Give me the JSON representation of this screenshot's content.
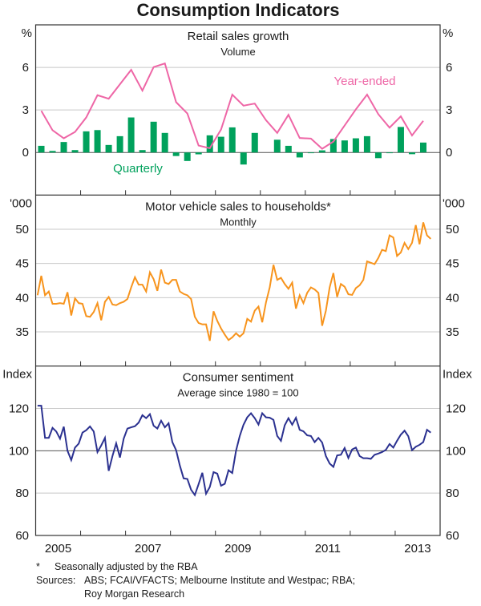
{
  "title": "Consumption Indicators",
  "footnotes": {
    "star": "*",
    "star_text": "Seasonally adjusted by the RBA",
    "sources_label": "Sources:",
    "sources_line1": "ABS; FCAI/VFACTS; Melbourne Institute and Westpac; RBA;",
    "sources_line2": "Roy Morgan Research"
  },
  "colors": {
    "year_ended": "#EE66A6",
    "quarterly": "#00A15C",
    "motor_vehicle": "#F7941D",
    "sentiment": "#2B3190",
    "grid": "#C8C8C8",
    "zero_line": "#555555"
  },
  "x_axis": {
    "range": [
      "2005-01",
      "2014-01"
    ],
    "tick_labels": [
      "2005",
      "2007",
      "2009",
      "2011",
      "2013"
    ],
    "label_years": [
      2005,
      2007,
      2009,
      2011,
      2013
    ]
  },
  "chart_data": [
    {
      "type": "bar+line",
      "title": "Retail sales growth",
      "subtitle": "Volume",
      "unit_left": "%",
      "unit_right": "%",
      "ylim": [
        -3,
        9
      ],
      "yticks": [
        0,
        3,
        6
      ],
      "grid": true,
      "x": [
        "2005-Q1",
        "2005-Q2",
        "2005-Q3",
        "2005-Q4",
        "2006-Q1",
        "2006-Q2",
        "2006-Q3",
        "2006-Q4",
        "2007-Q1",
        "2007-Q2",
        "2007-Q3",
        "2007-Q4",
        "2008-Q1",
        "2008-Q2",
        "2008-Q3",
        "2008-Q4",
        "2009-Q1",
        "2009-Q2",
        "2009-Q3",
        "2009-Q4",
        "2010-Q1",
        "2010-Q2",
        "2010-Q3",
        "2010-Q4",
        "2011-Q1",
        "2011-Q2",
        "2011-Q3",
        "2011-Q4",
        "2012-Q1",
        "2012-Q2",
        "2012-Q3",
        "2012-Q4",
        "2013-Q1",
        "2013-Q2",
        "2013-Q3"
      ],
      "series": [
        {
          "name": "Quarterly",
          "type": "bar",
          "values": [
            0.47,
            0.11,
            0.74,
            0.17,
            1.49,
            1.58,
            0.53,
            1.15,
            2.47,
            0.17,
            2.17,
            1.38,
            -0.25,
            -0.6,
            -0.13,
            1.21,
            1.11,
            1.77,
            -0.85,
            1.38,
            0,
            0.9,
            0.47,
            -0.35,
            -0.05,
            0.15,
            0.95,
            0.85,
            1.0,
            1.15,
            -0.4,
            -0.05,
            1.8,
            -0.12,
            0.7
          ]
        },
        {
          "name": "Year-ended",
          "type": "line",
          "values": [
            2.94,
            1.57,
            1.0,
            1.45,
            2.47,
            4.04,
            3.79,
            4.81,
            5.83,
            4.36,
            6.02,
            6.28,
            3.55,
            2.75,
            0.49,
            0.3,
            1.62,
            4.08,
            3.3,
            3.45,
            2.28,
            1.38,
            2.66,
            1.02,
            0.98,
            0.26,
            0.77,
            1.9,
            3.04,
            4.08,
            2.7,
            1.75,
            2.55,
            1.2,
            2.23
          ]
        }
      ]
    },
    {
      "type": "line",
      "title": "Motor vehicle sales to households*",
      "subtitle": "Monthly",
      "unit_left": "'000",
      "unit_right": "'000",
      "ylim": [
        30,
        55
      ],
      "yticks": [
        35,
        40,
        45,
        50
      ],
      "grid": true,
      "x": [
        "2005-01",
        "2005-02",
        "2005-03",
        "2005-04",
        "2005-05",
        "2005-06",
        "2005-07",
        "2005-08",
        "2005-09",
        "2005-10",
        "2005-11",
        "2005-12",
        "2006-01",
        "2006-02",
        "2006-03",
        "2006-04",
        "2006-05",
        "2006-06",
        "2006-07",
        "2006-08",
        "2006-09",
        "2006-10",
        "2006-11",
        "2006-12",
        "2007-01",
        "2007-02",
        "2007-03",
        "2007-04",
        "2007-05",
        "2007-06",
        "2007-07",
        "2007-08",
        "2007-09",
        "2007-10",
        "2007-11",
        "2007-12",
        "2008-01",
        "2008-02",
        "2008-03",
        "2008-04",
        "2008-05",
        "2008-06",
        "2008-07",
        "2008-08",
        "2008-09",
        "2008-10",
        "2008-11",
        "2008-12",
        "2009-01",
        "2009-02",
        "2009-03",
        "2009-04",
        "2009-05",
        "2009-06",
        "2009-07",
        "2009-08",
        "2009-09",
        "2009-10",
        "2009-11",
        "2009-12",
        "2010-01",
        "2010-02",
        "2010-03",
        "2010-04",
        "2010-05",
        "2010-06",
        "2010-07",
        "2010-08",
        "2010-09",
        "2010-10",
        "2010-11",
        "2010-12",
        "2011-01",
        "2011-02",
        "2011-03",
        "2011-04",
        "2011-05",
        "2011-06",
        "2011-07",
        "2011-08",
        "2011-09",
        "2011-10",
        "2011-11",
        "2011-12",
        "2012-01",
        "2012-02",
        "2012-03",
        "2012-04",
        "2012-05",
        "2012-06",
        "2012-07",
        "2012-08",
        "2012-09",
        "2012-10",
        "2012-11",
        "2012-12",
        "2013-01",
        "2013-02",
        "2013-03",
        "2013-04",
        "2013-05",
        "2013-06",
        "2013-07",
        "2013-08",
        "2013-09",
        "2013-10"
      ],
      "values": [
        40.35,
        43.2,
        40.35,
        40.9,
        39.1,
        39.1,
        39.2,
        39.1,
        40.8,
        37.4,
        39.9,
        39.2,
        39.1,
        37.3,
        37.2,
        37.9,
        39.2,
        36.7,
        39.4,
        40.1,
        39.0,
        38.9,
        39.2,
        39.4,
        39.8,
        41.5,
        43.0,
        41.9,
        41.9,
        40.9,
        43.7,
        42.7,
        41.0,
        44.1,
        42.2,
        42.0,
        42.6,
        42.6,
        40.9,
        40.55,
        40.35,
        39.8,
        37.2,
        36.3,
        36.1,
        36.1,
        33.7,
        38.0,
        36.6,
        35.5,
        34.6,
        33.8,
        34.2,
        34.8,
        34.3,
        34.8,
        36.9,
        36.5,
        38.1,
        38.7,
        36.4,
        39.3,
        41.5,
        44.8,
        42.6,
        42.9,
        42.0,
        41.3,
        42.2,
        38.4,
        40.35,
        39.2,
        40.7,
        41.5,
        41.2,
        40.7,
        35.9,
        38.1,
        41.5,
        43.6,
        40.1,
        42.0,
        41.6,
        40.5,
        40.4,
        41.4,
        41.8,
        42.6,
        45.3,
        45.1,
        44.9,
        45.8,
        47.0,
        46.8,
        49.1,
        48.8,
        46.1,
        46.6,
        48.0,
        47.1,
        48.0,
        50.6,
        47.8,
        51.0,
        49.1,
        48.6
      ]
    },
    {
      "type": "line",
      "title": "Consumer sentiment",
      "subtitle": "Average since 1980 = 100",
      "unit_left": "Index",
      "unit_right": "Index",
      "ylim": [
        60,
        140
      ],
      "yticks": [
        60,
        80,
        100,
        120
      ],
      "grid": true,
      "x_same_as_panel": 2,
      "values": [
        121.3,
        121.3,
        106.1,
        106.1,
        110.8,
        109.1,
        105.7,
        111.4,
        100,
        95.6,
        101.5,
        103.4,
        108.6,
        109.7,
        111.5,
        109.1,
        99.4,
        102.5,
        106.1,
        90.5,
        97.5,
        103.5,
        96.8,
        105.7,
        110.5,
        111.1,
        111.6,
        113.3,
        116.8,
        115.4,
        117.3,
        111.8,
        110.5,
        114.2,
        111.1,
        113.0,
        104.1,
        100.3,
        93,
        87,
        86.7,
        81.6,
        79.1,
        84.2,
        89.6,
        79.7,
        82.9,
        89.9,
        89.2,
        83.5,
        84.4,
        90.8,
        89.5,
        100,
        107,
        112.3,
        115.8,
        117.7,
        115.4,
        112.4,
        117.7,
        115.8,
        115.6,
        114.6,
        107,
        104.7,
        112,
        115.4,
        112.3,
        115.6,
        109.9,
        109.2,
        107.3,
        107,
        104.1,
        106.1,
        103.9,
        97.5,
        94,
        92.4,
        97.8,
        98.1,
        101.3,
        96.6,
        100.6,
        101.5,
        97.5,
        96.5,
        96.5,
        96.2,
        98.1,
        98.7,
        99.4,
        100.4,
        103.2,
        101.5,
        104.7,
        107.6,
        109.5,
        106.9,
        100.3,
        101.9,
        102.8,
        104.1,
        109.9,
        108.6
      ]
    }
  ]
}
